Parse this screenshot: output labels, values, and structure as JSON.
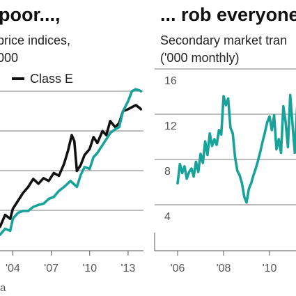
{
  "colors": {
    "classA": "#17a39a",
    "classE": "#111111",
    "grid": "#7a7a7a",
    "text": "#222222"
  },
  "left_panel": {
    "title": "poor...,",
    "subtitle_line1": "price indices,",
    "subtitle_line2": "000",
    "legend_label": "Class E",
    "source": "a"
  },
  "right_panel": {
    "title": "... rob everyone",
    "subtitle_line1": "Secondary market tran",
    "subtitle_line2": "('000 monthly)"
  },
  "chart_data": [
    {
      "type": "line",
      "title": "poor...,",
      "subtitle": "price indices, 000",
      "x_tick_labels": [
        "'04",
        "'07",
        "'10",
        "'13"
      ],
      "x_ticks": [
        2004,
        2007,
        2010,
        2013
      ],
      "xlim": [
        2003.0,
        2014.2
      ],
      "ylim": [
        0,
        4
      ],
      "grid": true,
      "legend": "top-left",
      "series": [
        {
          "name": "Class E",
          "color": "#111111",
          "x": [
            2003.0,
            2003.4,
            2003.8,
            2004.0,
            2004.4,
            2004.8,
            2005.2,
            2005.6,
            2006.0,
            2006.4,
            2006.8,
            2007.2,
            2007.6,
            2008.0,
            2008.3,
            2008.6,
            2008.8,
            2009.0,
            2009.3,
            2009.6,
            2010.0,
            2010.3,
            2010.6,
            2011.0,
            2011.3,
            2011.6,
            2012.0,
            2012.3,
            2012.6,
            2013.0,
            2013.3,
            2013.6,
            2013.9,
            2014.0
          ],
          "y": [
            0.6,
            0.9,
            0.8,
            1.05,
            1.25,
            1.45,
            1.6,
            1.8,
            1.68,
            1.82,
            1.75,
            1.95,
            1.88,
            2.18,
            2.5,
            2.9,
            2.75,
            2.0,
            2.15,
            2.4,
            2.55,
            2.85,
            2.7,
            3.0,
            2.9,
            3.25,
            3.1,
            3.2,
            3.5,
            3.55,
            3.6,
            3.65,
            3.58,
            3.55
          ]
        },
        {
          "name": "",
          "color": "#17a39a",
          "x": [
            2003.0,
            2003.4,
            2003.8,
            2004.0,
            2004.4,
            2004.8,
            2005.2,
            2005.6,
            2006.0,
            2006.4,
            2006.8,
            2007.2,
            2007.6,
            2008.0,
            2008.5,
            2009.0,
            2009.3,
            2009.6,
            2010.0,
            2010.3,
            2010.6,
            2011.0,
            2011.3,
            2011.6,
            2012.0,
            2012.3,
            2012.6,
            2013.0,
            2013.3,
            2013.6,
            2013.9,
            2014.0
          ],
          "y": [
            0.4,
            0.55,
            0.5,
            0.8,
            0.95,
            1.0,
            1.0,
            1.1,
            1.15,
            1.18,
            1.3,
            1.35,
            1.5,
            1.6,
            1.75,
            1.6,
            1.9,
            2.1,
            2.05,
            2.35,
            2.45,
            2.65,
            2.8,
            2.95,
            3.05,
            3.1,
            3.5,
            3.75,
            4.0,
            4.05,
            4.02,
            4.0
          ]
        }
      ]
    },
    {
      "type": "line",
      "title": "... rob everyone",
      "subtitle": "Secondary market tran ('000 monthly)",
      "ylabel": "('000 monthly)",
      "x_tick_labels": [
        "'06",
        "'08",
        "'10"
      ],
      "x_ticks": [
        2006,
        2008,
        2010
      ],
      "xlim": [
        2005.0,
        2011.5
      ],
      "ylim": [
        4,
        16
      ],
      "y_ticks": [
        4,
        8,
        12,
        16
      ],
      "grid": true,
      "series": [
        {
          "name": "",
          "color": "#17a39a",
          "x": [
            2006.0,
            2006.1,
            2006.2,
            2006.3,
            2006.4,
            2006.5,
            2006.6,
            2006.7,
            2006.8,
            2006.9,
            2007.0,
            2007.1,
            2007.2,
            2007.3,
            2007.4,
            2007.5,
            2007.6,
            2007.7,
            2007.8,
            2007.9,
            2008.0,
            2008.1,
            2008.2,
            2008.3,
            2008.4,
            2008.5,
            2008.6,
            2008.7,
            2008.8,
            2008.9,
            2009.0,
            2009.1,
            2009.2,
            2009.3,
            2009.4,
            2009.5,
            2009.6,
            2009.7,
            2009.8,
            2009.9,
            2010.0,
            2010.1,
            2010.2,
            2010.3,
            2010.4,
            2010.5,
            2010.6,
            2010.7,
            2010.8,
            2010.9,
            2011.0,
            2011.1,
            2011.2,
            2011.3,
            2011.4,
            2011.5
          ],
          "y": [
            5.9,
            7.6,
            6.8,
            7.4,
            6.3,
            6.9,
            7.2,
            6.5,
            7.8,
            6.9,
            8.5,
            7.7,
            9.6,
            8.4,
            10.3,
            9.2,
            9.8,
            9.3,
            10.6,
            10.2,
            13.6,
            12.8,
            13.4,
            10.8,
            10.3,
            8.2,
            7.0,
            6.6,
            5.9,
            4.7,
            4.2,
            5.4,
            5.9,
            6.6,
            7.2,
            7.9,
            8.7,
            9.6,
            10.4,
            11.3,
            11.8,
            10.6,
            11.9,
            8.9,
            9.8,
            8.6,
            12.7,
            11.3,
            9.1,
            13.7,
            11.1,
            8.6,
            12.6,
            10.9,
            8.8,
            10.6
          ]
        }
      ]
    }
  ]
}
